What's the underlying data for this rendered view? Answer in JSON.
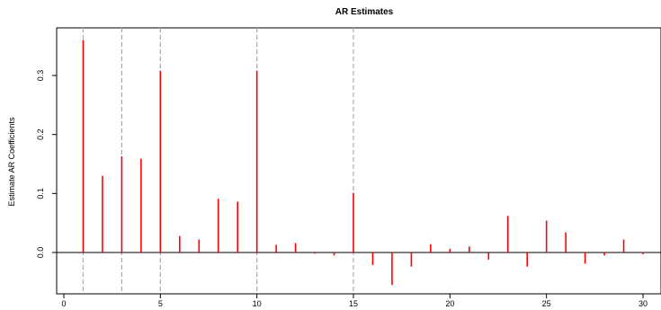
{
  "chart_data": {
    "type": "bar",
    "title": "AR Estimates",
    "xlabel": "",
    "ylabel": "Estimate AR Coefficients",
    "xlim": [
      0,
      30
    ],
    "ylim": [
      -0.055,
      0.36
    ],
    "x_ticks": [
      0,
      5,
      10,
      15,
      20,
      25,
      30
    ],
    "y_ticks": [
      0.0,
      0.1,
      0.2,
      0.3
    ],
    "y_tick_labels": [
      "0.0",
      "0.1",
      "0.2",
      "0.3"
    ],
    "bar_color": "#ff0000",
    "vline_color": "#aaaaaa",
    "reference_lines": [
      1,
      3,
      5,
      10,
      15
    ],
    "x": [
      1,
      2,
      3,
      4,
      5,
      6,
      7,
      8,
      9,
      10,
      11,
      12,
      13,
      14,
      15,
      16,
      17,
      18,
      19,
      20,
      21,
      22,
      23,
      24,
      25,
      26,
      27,
      28,
      29,
      30
    ],
    "values": [
      0.36,
      0.13,
      0.163,
      0.159,
      0.308,
      0.028,
      0.022,
      0.091,
      0.086,
      0.308,
      0.013,
      0.016,
      -0.002,
      -0.005,
      0.101,
      -0.021,
      -0.055,
      -0.024,
      0.014,
      0.006,
      0.01,
      -0.012,
      0.062,
      -0.024,
      0.054,
      0.034,
      -0.019,
      -0.005,
      0.022,
      -0.003
    ]
  }
}
